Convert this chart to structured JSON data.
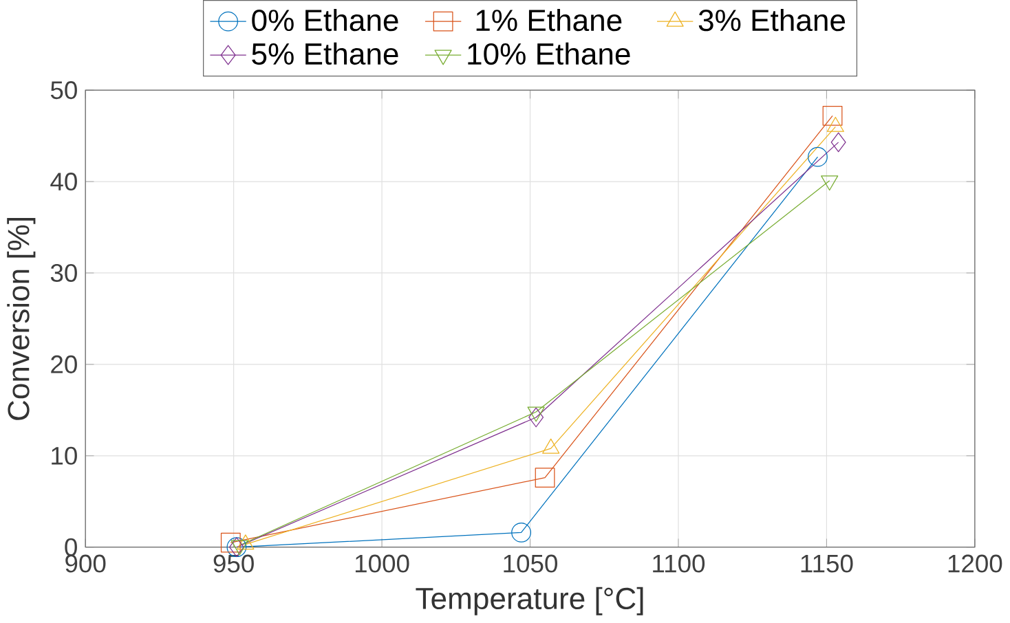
{
  "chart_data": {
    "type": "line",
    "xlabel": "Temperature [°C]",
    "ylabel": "Conversion [%]",
    "xlim": [
      900,
      1200
    ],
    "xticks": [
      900,
      950,
      1000,
      1050,
      1100,
      1150,
      1200
    ],
    "ylim": [
      0,
      50
    ],
    "yticks": [
      0,
      10,
      20,
      30,
      40,
      50
    ],
    "grid": true,
    "legend": "top",
    "series": [
      {
        "name": "0% Ethane",
        "color": "#0072bd",
        "marker": "circle",
        "x": [
          951,
          1047,
          1147
        ],
        "values": [
          0,
          1.6,
          42.7
        ]
      },
      {
        "name": "1% Ethane",
        "color": "#d95319",
        "marker": "square",
        "x": [
          949,
          1055,
          1152
        ],
        "values": [
          0.5,
          7.6,
          47.2
        ]
      },
      {
        "name": "3% Ethane",
        "color": "#edb120",
        "marker": "triangle",
        "x": [
          954,
          1057,
          1153
        ],
        "values": [
          0.3,
          10.8,
          46
        ]
      },
      {
        "name": "5% Ethane",
        "color": "#7e2f8e",
        "marker": "diamond",
        "x": [
          951,
          1052,
          1154
        ],
        "values": [
          0,
          14.2,
          44.3
        ]
      },
      {
        "name": "10% Ethane",
        "color": "#77ac30",
        "marker": "triangle down",
        "x": [
          952,
          1052,
          1151
        ],
        "values": [
          0.2,
          14.8,
          40.1
        ]
      }
    ]
  }
}
